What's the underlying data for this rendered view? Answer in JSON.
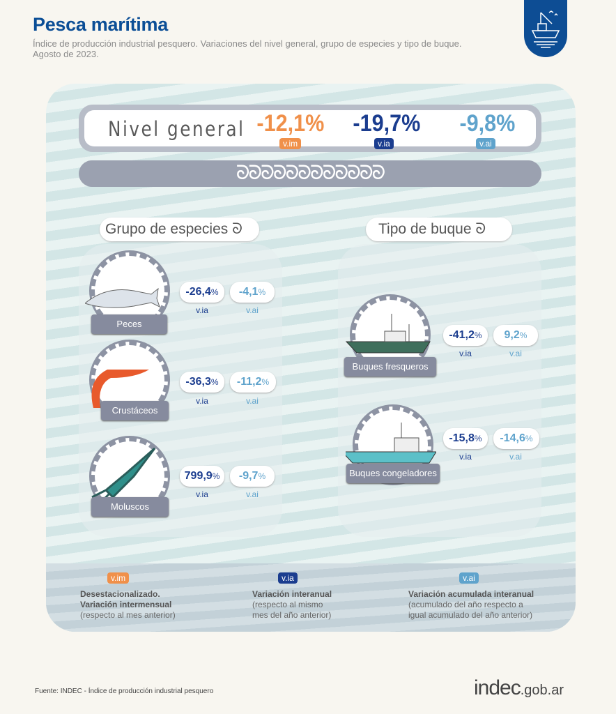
{
  "header": {
    "title": "Pesca marítima",
    "subtitle": "Índice de producción industrial pesquero. Variaciones del nivel general, grupo de especies y tipo de buque.",
    "date": "Agosto de 2023."
  },
  "colors": {
    "vim": "#f0904a",
    "via": "#1b3d8f",
    "vai": "#5fa3cc",
    "brand": "#0b4e96"
  },
  "nivel_general": {
    "label": "Nivel general",
    "vim": "-12,1%",
    "via": "-19,7%",
    "vai": "-9,8%"
  },
  "tags": {
    "vim": "v.im",
    "via": "v.ia",
    "vai": "v.ai"
  },
  "chain": "ᘐᘐᘐᘐᘐᘐᘐᘐᘐᘐᘐᘐ",
  "especies": {
    "title": "Grupo de especies",
    "items": [
      {
        "name": "Peces",
        "icon": "fish-icon",
        "via": "-26,4",
        "vai": "-4,1"
      },
      {
        "name": "Crustáceos",
        "icon": "shrimp-icon",
        "via": "-36,3",
        "vai": "-11,2"
      },
      {
        "name": "Moluscos",
        "icon": "squid-icon",
        "via": "799,9",
        "vai": "-9,7"
      }
    ]
  },
  "buques": {
    "title": "Tipo de buque",
    "items": [
      {
        "name": "Buques fresqueros",
        "icon": "trawler-icon",
        "via": "-41,2",
        "vai": "9,2"
      },
      {
        "name": "Buques congeladores",
        "icon": "freezer-ship-icon",
        "via": "-15,8",
        "vai": "-14,6"
      }
    ]
  },
  "pct": "%",
  "legend": {
    "vim": {
      "l1": "Desestacionalizado.",
      "l2": "Variación intermensual",
      "l3": "(respecto al mes anterior)"
    },
    "via": {
      "l1": "Variación interanual",
      "l2": "(respecto al mismo",
      "l3": "mes del año anterior)"
    },
    "vai": {
      "l1": "Variación acumulada interanual",
      "l2": "(acumulado del año respecto a",
      "l3": "igual acumulado del año anterior)"
    }
  },
  "footer": {
    "source": "Fuente: INDEC - Índice de producción industrial pesquero",
    "logo_main": "indec",
    "logo_suffix": ".gob.ar"
  }
}
